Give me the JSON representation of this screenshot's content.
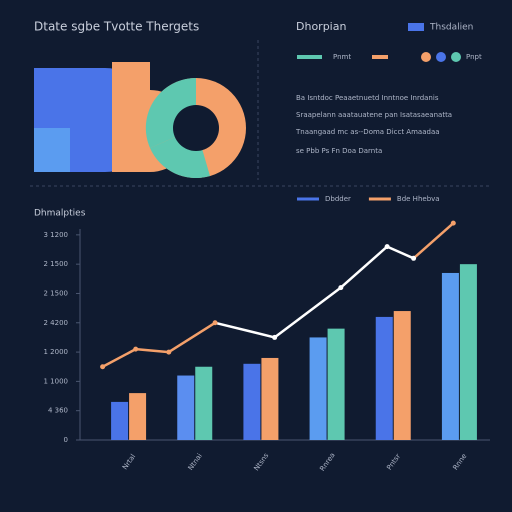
{
  "header": {
    "title": "Dtate sgbe Tvotte Thergets",
    "subtitle": "Dhorpian",
    "legend": "Thsdalien"
  },
  "summary": {
    "legend": [
      "Pnmt",
      "Pnpt"
    ],
    "lines": [
      "Ba  Isntdoc Peaaetnuetd Inntnoe Inrdanis",
      "Sraapelann aaatauatene pan  Isatasaeanatta",
      "Tnaangaad mc as--Doma  Dicct Amaadaa",
      "se  Pbb  Ps  Fn  Doa  Darnta"
    ]
  },
  "chart_data": {
    "type": "bar",
    "title": "Dhmalpties",
    "categories": [
      "Nrtal",
      "Ntnai",
      "Ntsns",
      "Rnrea",
      "Pntsr",
      "Rnne"
    ],
    "series": [
      {
        "name": "Dbdder",
        "color": "#4a74e8",
        "colors": [
          "#4a74e8",
          "#5b8ef0",
          "#4a74e8",
          "#5b9cf0",
          "#4a74e8",
          "#5b9cf0"
        ],
        "values": [
          1.3,
          2.2,
          2.6,
          3.5,
          4.2,
          5.7
        ]
      },
      {
        "name": "Bde Hhebva",
        "color": "#f4a06a",
        "colors": [
          "#f4a06a",
          "#5ec8b0",
          "#f4a06a",
          "#5ec8b0",
          "#f4a06a",
          "#5ec8b0"
        ],
        "values": [
          1.6,
          2.5,
          2.8,
          3.8,
          4.4,
          6.0
        ]
      }
    ],
    "line": {
      "x": [
        -0.4,
        0.1,
        0.6,
        1.3,
        2.2,
        3.2,
        3.9,
        4.3,
        4.9
      ],
      "values": [
        2.5,
        3.1,
        3.0,
        4.0,
        3.5,
        5.2,
        6.6,
        6.2,
        7.4
      ],
      "colors": [
        "#f4a06a",
        "#f4a06a",
        "#f4a06a",
        "#f4a06a",
        "#ffffff",
        "#ffffff",
        "#ffffff",
        "#ffffff",
        "#f4a06a"
      ]
    },
    "ylim": [
      0,
      7.2
    ],
    "yticks": [
      0,
      {
        "value": 1,
        "label": "4 360"
      },
      {
        "value": 2,
        "label": "1 1000"
      },
      {
        "value": 3,
        "label": "1 2000"
      },
      {
        "value": 4,
        "label": "2 4200"
      },
      {
        "value": 5,
        "label": "2 1500"
      },
      {
        "value": 6,
        "label": "2 1500"
      },
      {
        "value": 7,
        "label": "3 1200"
      }
    ]
  }
}
